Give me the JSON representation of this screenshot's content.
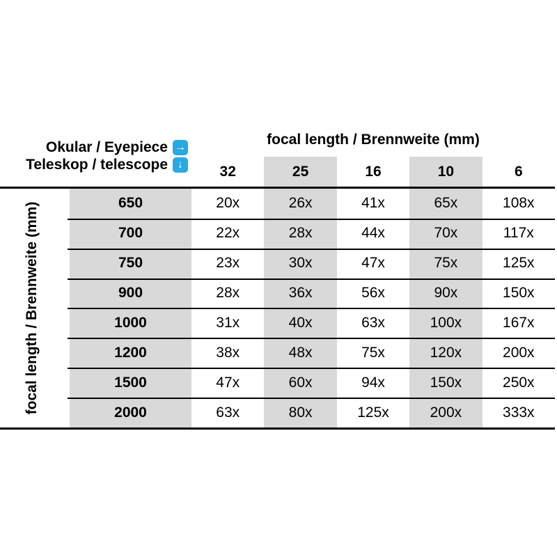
{
  "meta": {
    "accent_blue": "#29a9e1",
    "shade_gray": "#d9d9d9",
    "background": "#ffffff"
  },
  "header": {
    "eyepiece_label": "Okular / Eyepiece",
    "eyepiece_arrow_icon": "→",
    "telescope_label": "Teleskop / telescope",
    "telescope_arrow_icon": "↓",
    "columns_title": "focal length / Brennweite (mm)"
  },
  "left_axis": {
    "label": "focal length / Brennweite (mm)"
  },
  "chart_data": {
    "type": "table",
    "title": "Telescope / eyepiece magnification table",
    "column_axis_label": "focal length / Brennweite (mm)",
    "row_axis_label": "focal length / Brennweite (mm)",
    "columns": [
      "32",
      "25",
      "16",
      "10",
      "6"
    ],
    "shaded_columns": [
      "25",
      "10"
    ],
    "rows": [
      {
        "telescope": "650",
        "values": [
          "20x",
          "26x",
          "41x",
          "65x",
          "108x"
        ]
      },
      {
        "telescope": "700",
        "values": [
          "22x",
          "28x",
          "44x",
          "70x",
          "117x"
        ]
      },
      {
        "telescope": "750",
        "values": [
          "23x",
          "30x",
          "47x",
          "75x",
          "125x"
        ]
      },
      {
        "telescope": "900",
        "values": [
          "28x",
          "36x",
          "56x",
          "90x",
          "150x"
        ]
      },
      {
        "telescope": "1000",
        "values": [
          "31x",
          "40x",
          "63x",
          "100x",
          "167x"
        ]
      },
      {
        "telescope": "1200",
        "values": [
          "38x",
          "48x",
          "75x",
          "120x",
          "200x"
        ]
      },
      {
        "telescope": "1500",
        "values": [
          "47x",
          "60x",
          "94x",
          "150x",
          "250x"
        ]
      },
      {
        "telescope": "2000",
        "values": [
          "63x",
          "80x",
          "125x",
          "200x",
          "333x"
        ]
      }
    ]
  }
}
